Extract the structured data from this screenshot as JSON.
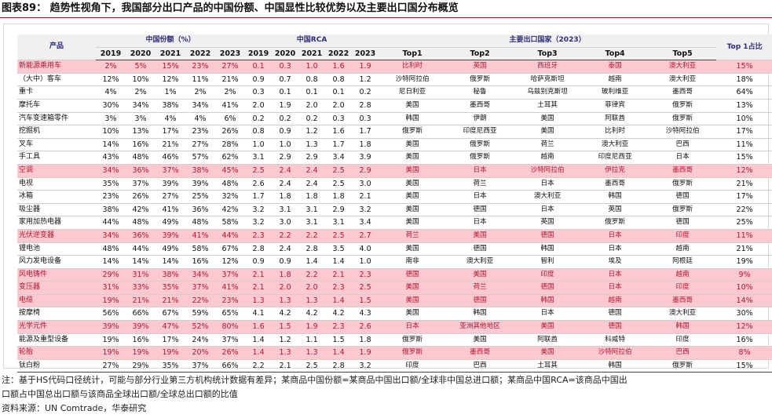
{
  "title": "图表89：  趋势性视角下，我国部分出口产品的中国份额、中国显性比较优势以及主要出口国分布概览",
  "header": {
    "product": "产品",
    "share_group": "中国份额（%）",
    "rca_group": "中国RCA",
    "exporters_group": "主要出口国家（2023）",
    "top1_share": "Top 1占比",
    "years": [
      "2019",
      "2020",
      "2021",
      "2022",
      "2023"
    ],
    "tops": [
      "Top1",
      "Top2",
      "Top3",
      "Top4",
      "Top5"
    ]
  },
  "rows": [
    {
      "name": "新能源乘用车",
      "hl": true,
      "share": [
        "2%",
        "5%",
        "15%",
        "23%",
        "27%"
      ],
      "rca": [
        "0.1",
        "0.3",
        "1.0",
        "1.6",
        "1.9"
      ],
      "top": [
        "比利时",
        "英国",
        "西班牙",
        "泰国",
        "澳大利亚"
      ],
      "top1": "15%"
    },
    {
      "name": "（大中）客车",
      "hl": false,
      "share": [
        "12%",
        "10%",
        "12%",
        "11%",
        "21%"
      ],
      "rca": [
        "0.9",
        "0.7",
        "0.8",
        "0.8",
        "1.2"
      ],
      "top": [
        "沙特阿拉伯",
        "俄罗斯",
        "哈萨克斯坦",
        "越南",
        "澳大利亚"
      ],
      "top1": "18%"
    },
    {
      "name": "重卡",
      "hl": false,
      "share": [
        "4%",
        "2%",
        "1%",
        "2%",
        "2%"
      ],
      "rca": [
        "0.3",
        "0.1",
        "0.1",
        "0.1",
        "0.2"
      ],
      "top": [
        "尼日利亚",
        "秘鲁",
        "乌兹别克斯坦",
        "玻利维亚",
        "墨西哥"
      ],
      "top1": "64%"
    },
    {
      "name": "摩托车",
      "hl": false,
      "share": [
        "30%",
        "34%",
        "38%",
        "34%",
        "41%"
      ],
      "rca": [
        "2.0",
        "1.9",
        "2.0",
        "2.0",
        "2.8"
      ],
      "top": [
        "美国",
        "墨西哥",
        "土耳其",
        "菲律宾",
        "俄罗斯"
      ],
      "top1": "13%"
    },
    {
      "name": "汽车变速箱零件",
      "hl": false,
      "share": [
        "3%",
        "3%",
        "4%",
        "4%",
        "6%"
      ],
      "rca": [
        "0.2",
        "0.2",
        "0.2",
        "0.3",
        "0.3"
      ],
      "top": [
        "韩国",
        "伊朗",
        "美国",
        "阿联酋",
        "俄罗斯"
      ],
      "top1": "10%"
    },
    {
      "name": "挖掘机",
      "hl": false,
      "share": [
        "10%",
        "13%",
        "17%",
        "23%",
        "26%"
      ],
      "rca": [
        "0.8",
        "0.9",
        "1.2",
        "1.6",
        "1.7"
      ],
      "top": [
        "俄罗斯",
        "印度尼西亚",
        "美国",
        "比利时",
        "沙特阿拉伯"
      ],
      "top1": "17%"
    },
    {
      "name": "叉车",
      "hl": false,
      "share": [
        "14%",
        "16%",
        "21%",
        "27%",
        "28%"
      ],
      "rca": [
        "1.0",
        "1.0",
        "1.3",
        "1.7",
        "1.8"
      ],
      "top": [
        "美国",
        "俄罗斯",
        "荷兰",
        "澳大利亚",
        "巴西"
      ],
      "top1": "11%"
    },
    {
      "name": "手工具",
      "hl": false,
      "share": [
        "43%",
        "48%",
        "46%",
        "57%",
        "62%"
      ],
      "rca": [
        "3.1",
        "2.9",
        "2.9",
        "3.4",
        "3.9"
      ],
      "top": [
        "美国",
        "俄罗斯",
        "越南",
        "印度尼西亚",
        "日本"
      ],
      "top1": "15%"
    },
    {
      "name": "空调",
      "hl": true,
      "share": [
        "34%",
        "36%",
        "37%",
        "38%",
        "45%"
      ],
      "rca": [
        "2.5",
        "2.4",
        "2.4",
        "2.5",
        "2.9"
      ],
      "top": [
        "美国",
        "日本",
        "沙特阿拉伯",
        "伊拉克",
        "墨西哥"
      ],
      "top1": "12%"
    },
    {
      "name": "电视",
      "hl": false,
      "share": [
        "35%",
        "37%",
        "39%",
        "39%",
        "48%"
      ],
      "rca": [
        "2.6",
        "2.4",
        "2.4",
        "2.5",
        "3.0"
      ],
      "top": [
        "美国",
        "荷兰",
        "日本",
        "墨西哥",
        "俄罗斯"
      ],
      "top1": "21%"
    },
    {
      "name": "冰箱",
      "hl": false,
      "share": [
        "23%",
        "26%",
        "27%",
        "25%",
        "32%"
      ],
      "rca": [
        "1.7",
        "1.8",
        "1.8",
        "1.8",
        "2.1"
      ],
      "top": [
        "美国",
        "日本",
        "澳大利亚",
        "韩国",
        "德国"
      ],
      "top1": "17%"
    },
    {
      "name": "吸尘器",
      "hl": false,
      "share": [
        "38%",
        "42%",
        "41%",
        "36%",
        "42%"
      ],
      "rca": [
        "3.2",
        "3.1",
        "3.1",
        "2.9",
        "3.2"
      ],
      "top": [
        "美国",
        "德国",
        "日本",
        "英国",
        "俄罗斯"
      ],
      "top1": "22%"
    },
    {
      "name": "家用加热电器",
      "hl": false,
      "share": [
        "44%",
        "48%",
        "49%",
        "48%",
        "58%"
      ],
      "rca": [
        "3.2",
        "3.0",
        "3.1",
        "3.1",
        "3.4"
      ],
      "top": [
        "美国",
        "日本",
        "英国",
        "俄罗斯",
        "德国"
      ],
      "top1": "25%"
    },
    {
      "name": "光伏逆变器",
      "hl": true,
      "share": [
        "34%",
        "36%",
        "39%",
        "41%",
        "44%"
      ],
      "rca": [
        "2.3",
        "2.2",
        "2.2",
        "2.5",
        "2.7"
      ],
      "top": [
        "荷兰",
        "美国",
        "德国",
        "日本",
        "印度"
      ],
      "top1": "11%"
    },
    {
      "name": "锂电池",
      "hl": false,
      "share": [
        "48%",
        "44%",
        "49%",
        "58%",
        "67%"
      ],
      "rca": [
        "2.8",
        "2.4",
        "2.8",
        "3.5",
        "4.0"
      ],
      "top": [
        "美国",
        "德国",
        "韩国",
        "日本",
        "越南"
      ],
      "top1": "21%"
    },
    {
      "name": "风力发电设备",
      "hl": false,
      "share": [
        "14%",
        "14%",
        "14%",
        "16%",
        "12%"
      ],
      "rca": [
        "0.9",
        "0.9",
        "1.4",
        "1.4",
        "1.0"
      ],
      "top": [
        "南非",
        "澳大利亚",
        "智利",
        "埃及",
        "阿根廷"
      ],
      "top1": "19%"
    },
    {
      "name": "风电铸件",
      "hl": true,
      "share": [
        "29%",
        "31%",
        "38%",
        "34%",
        "37%"
      ],
      "rca": [
        "2.1",
        "1.8",
        "2.2",
        "2.1",
        "2.3"
      ],
      "top": [
        "德国",
        "美国",
        "印度",
        "日本",
        "越南"
      ],
      "top1": "9%"
    },
    {
      "name": "变压器",
      "hl": true,
      "share": [
        "31%",
        "33%",
        "35%",
        "37%",
        "41%"
      ],
      "rca": [
        "2.1",
        "2.0",
        "2.0",
        "2.3",
        "2.5"
      ],
      "top": [
        "美国",
        "荷兰",
        "德国",
        "日本",
        "印度"
      ],
      "top1": "10%"
    },
    {
      "name": "电缆",
      "hl": true,
      "share": [
        "19%",
        "21%",
        "21%",
        "22%",
        "23%"
      ],
      "rca": [
        "1.3",
        "1.3",
        "1.3",
        "1.4",
        "1.5"
      ],
      "top": [
        "美国",
        "德国",
        "韩国",
        "越南",
        "墨西哥"
      ],
      "top1": "14%"
    },
    {
      "name": "按摩椅",
      "hl": false,
      "share": [
        "56%",
        "66%",
        "67%",
        "59%",
        "65%"
      ],
      "rca": [
        "4.1",
        "4.2",
        "4.2",
        "4.2",
        "4.3"
      ],
      "top": [
        "美国",
        "韩国",
        "日本",
        "德国",
        "澳大利亚"
      ],
      "top1": "30%"
    },
    {
      "name": "光学元件",
      "hl": true,
      "share": [
        "39%",
        "39%",
        "47%",
        "52%",
        "80%"
      ],
      "rca": [
        "1.6",
        "1.5",
        "1.9",
        "2.3",
        "2.6"
      ],
      "top": [
        "日本",
        "亚洲其他地区",
        "美国",
        "德国",
        "韩国"
      ],
      "top1": "12%"
    },
    {
      "name": "能源及重型设备",
      "hl": false,
      "share": [
        "19%",
        "16%",
        "17%",
        "24%",
        "37%"
      ],
      "rca": [
        "1.4",
        "1.2",
        "1.1",
        "1.5",
        "1.8"
      ],
      "top": [
        "俄罗斯",
        "美国",
        "阿联酋",
        "科威特",
        "印度"
      ],
      "top1": "16%"
    },
    {
      "name": "轮胎",
      "hl": true,
      "share": [
        "19%",
        "19%",
        "19%",
        "20%",
        "26%"
      ],
      "rca": [
        "1.4",
        "1.3",
        "1.3",
        "1.4",
        "1.9"
      ],
      "top": [
        "俄罗斯",
        "墨西哥",
        "美国",
        "沙特阿拉伯",
        "巴西"
      ],
      "top1": "8%"
    },
    {
      "name": "钛白粉",
      "hl": false,
      "share": [
        "27%",
        "29%",
        "35%",
        "37%",
        "66%"
      ],
      "rca": [
        "2.2",
        "2.1",
        "2.5",
        "2.8",
        "3.2"
      ],
      "top": [
        "印度",
        "巴西",
        "土耳其",
        "韩国",
        "俄罗斯"
      ],
      "top1": "15%"
    }
  ],
  "notes": {
    "line1": "注：基于HS代码口径统计，可能与部分行业第三方机构统计数据有差异；某商品中国份额=某商品中国出口额/全球非中国总进口额；某商品中国RCA=该商品中国出",
    "line2": "口额占中国总出口额与该商品全球出口额/全球总出口额的比值",
    "line3": "资料来源：UN Comtrade，华泰研究"
  }
}
